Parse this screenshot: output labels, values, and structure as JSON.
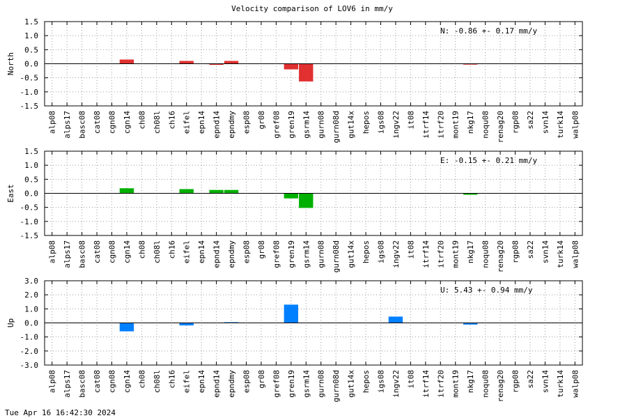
{
  "chart_data": {
    "type": "bar",
    "title": "Velocity comparison of LOV6 in mm/y",
    "grid": true,
    "categories": [
      "alp08",
      "alps17",
      "basc08",
      "cat08",
      "cgn08",
      "cgn14",
      "ch08",
      "ch08l",
      "ch16",
      "eifel",
      "epn14",
      "epnd14",
      "epndmy",
      "esp08",
      "gr08",
      "gref08",
      "gren19",
      "gsrm14",
      "gurn08",
      "gurn08d",
      "gut14x",
      "hepos",
      "igs08",
      "ingv22",
      "it08",
      "itrf14",
      "itrf20",
      "mont19",
      "nkg17",
      "noqu08",
      "renag20",
      "rgp08",
      "sa22",
      "svn14",
      "turk14",
      "walp08"
    ],
    "panels": [
      {
        "ylabel": "North",
        "ylim": [
          -1.5,
          1.5
        ],
        "yticks": [
          -1.5,
          -1.0,
          -0.5,
          0.0,
          0.5,
          1.0,
          1.5
        ],
        "ytick_labels": [
          "-1.5",
          "-1.0",
          "-0.5",
          "0.0",
          "0.5",
          "1.0",
          "1.5"
        ],
        "color": "#e03030",
        "stat": "N:  -0.86 +-  0.17 mm/y",
        "values": [
          0,
          0,
          0,
          0,
          0,
          0.15,
          0,
          0,
          0,
          0.1,
          0,
          -0.04,
          0.1,
          0,
          0,
          0,
          -0.2,
          -0.63,
          0,
          0,
          0,
          0,
          0,
          0,
          0,
          0,
          0,
          0,
          -0.03,
          0,
          0,
          0,
          0,
          0,
          0,
          0
        ]
      },
      {
        "ylabel": "East",
        "ylim": [
          -1.5,
          1.5
        ],
        "yticks": [
          -1.5,
          -1.0,
          -0.5,
          0.0,
          0.5,
          1.0,
          1.5
        ],
        "ytick_labels": [
          "-1.5",
          "-1.0",
          "-0.5",
          "0.0",
          "0.5",
          "1.0",
          "1.5"
        ],
        "color": "#00b000",
        "stat": "E:  -0.15 +-  0.21 mm/y",
        "values": [
          0,
          0,
          0,
          0,
          0,
          0.18,
          0,
          0,
          0,
          0.15,
          0,
          0.12,
          0.12,
          0,
          0,
          0,
          -0.18,
          -0.52,
          0,
          0,
          0,
          0,
          0,
          0,
          0,
          0,
          0,
          0,
          -0.05,
          0,
          0,
          0,
          0,
          0,
          0,
          0
        ]
      },
      {
        "ylabel": "Up",
        "ylim": [
          -3.0,
          3.0
        ],
        "yticks": [
          -3.0,
          -2.0,
          -1.0,
          0.0,
          1.0,
          2.0,
          3.0
        ],
        "ytick_labels": [
          "-3.0",
          "-2.0",
          "-1.0",
          "0.0",
          "1.0",
          "2.0",
          "3.0"
        ],
        "color": "#0080ff",
        "stat": "U:   5.43 +-  0.94 mm/y",
        "values": [
          0,
          0,
          0,
          0,
          0,
          -0.6,
          0,
          0,
          0,
          -0.18,
          0,
          0,
          0.05,
          0,
          0,
          0,
          1.3,
          0,
          0,
          0,
          0,
          0,
          0,
          0.45,
          0,
          0,
          0,
          0,
          -0.12,
          0,
          0,
          0,
          0,
          0,
          0,
          0
        ]
      }
    ]
  },
  "footer": {
    "timestamp": "Tue Apr 16 16:42:30 2024"
  }
}
